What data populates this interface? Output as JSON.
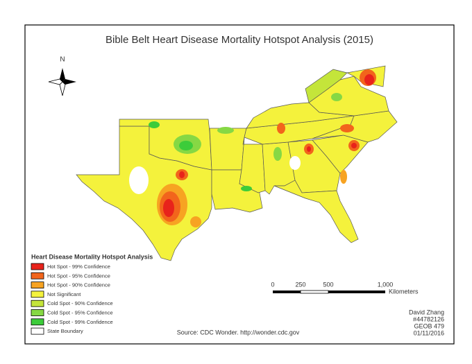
{
  "title": "Bible Belt Heart Disease Mortality Hotspot Analysis (2015)",
  "north_arrow": {
    "label": "N"
  },
  "legend": {
    "title": "Heart Disease Mortality Hotspot Analysis",
    "items": [
      {
        "label": "Hot Spot - 99% Confidence",
        "color": "#e8231b"
      },
      {
        "label": "Hot Spot - 95% Confidence",
        "color": "#f2651c"
      },
      {
        "label": "Hot Spot - 90% Confidence",
        "color": "#f7a322"
      },
      {
        "label": "Not Significant",
        "color": "#f4f23c"
      },
      {
        "label": "Cold Spot - 90% Confidence",
        "color": "#c4e53a"
      },
      {
        "label": "Cold Spot - 95% Confidence",
        "color": "#86d844"
      },
      {
        "label": "Cold Spot - 99% Confidence",
        "color": "#3ccc3a"
      },
      {
        "label": "State Boundary",
        "color": "#ffffff"
      }
    ]
  },
  "scale_bar": {
    "labels": [
      "0",
      "250",
      "500",
      "1,000"
    ],
    "unit": "Kilometers"
  },
  "author": {
    "lines": [
      "David Zhang",
      "#44782126",
      "GEOB 479",
      "01/11/2016"
    ]
  },
  "source": "Source: CDC  Wonder. http://wonder.cdc.gov"
}
